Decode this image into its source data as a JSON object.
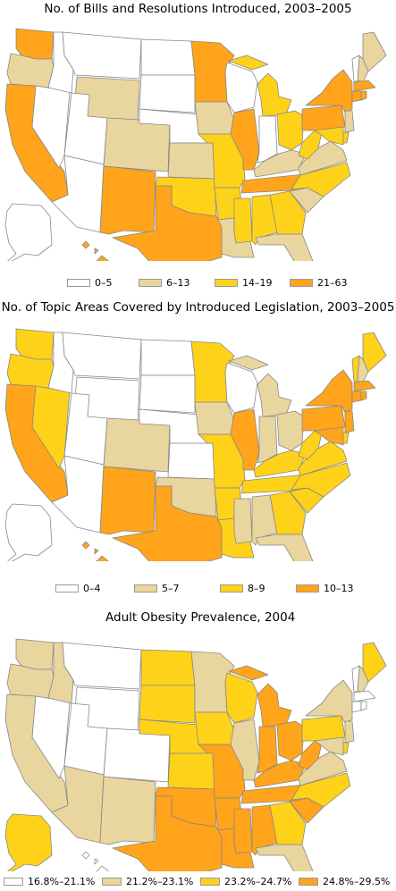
{
  "colors": {
    "c0": "#ffffff",
    "c1": "#e9d59e",
    "c2": "#ffd21a",
    "c3": "#ffa41b"
  },
  "maps": [
    {
      "title": "No. of Bills and Resolutions Introduced, 2003–2005",
      "legend": [
        "0–5",
        "6–13",
        "14–19",
        "21–63"
      ],
      "states": {
        "WA": 3,
        "OR": 1,
        "CA": 3,
        "NV": 0,
        "ID": 0,
        "MT": 0,
        "WY": 1,
        "UT": 0,
        "AZ": 0,
        "CO": 1,
        "NM": 3,
        "ND": 0,
        "SD": 0,
        "NE": 0,
        "KS": 1,
        "OK": 2,
        "TX": 3,
        "MN": 3,
        "IA": 1,
        "MO": 2,
        "AR": 2,
        "LA": 1,
        "WI": 0,
        "IL": 3,
        "MI": 2,
        "IN": 0,
        "OH": 2,
        "KY": 1,
        "TN": 3,
        "MS": 2,
        "AL": 2,
        "GA": 2,
        "FL": 1,
        "SC": 1,
        "NC": 2,
        "VA": 1,
        "WV": 2,
        "PA": 3,
        "NY": 3,
        "ME": 1,
        "NH": 1,
        "VT": 0,
        "MA": 3,
        "CT": 3,
        "RI": 3,
        "NJ": 1,
        "DE": 2,
        "MD": 2,
        "AK": 0,
        "HI": 3
      }
    },
    {
      "title": "No. of Topic Areas Covered by Introduced Legislation, 2003–2005",
      "legend": [
        "0–4",
        "5–7",
        "8–9",
        "10–13"
      ],
      "states": {
        "WA": 2,
        "OR": 2,
        "CA": 3,
        "NV": 2,
        "ID": 0,
        "MT": 0,
        "WY": 0,
        "UT": 0,
        "AZ": 0,
        "CO": 1,
        "NM": 3,
        "ND": 0,
        "SD": 0,
        "NE": 0,
        "KS": 0,
        "OK": 1,
        "TX": 3,
        "MN": 2,
        "IA": 1,
        "MO": 2,
        "AR": 2,
        "LA": 2,
        "WI": 0,
        "IL": 3,
        "MI": 1,
        "IN": 1,
        "OH": 1,
        "KY": 2,
        "TN": 2,
        "MS": 1,
        "AL": 1,
        "GA": 2,
        "FL": 1,
        "SC": 2,
        "NC": 2,
        "VA": 2,
        "WV": 2,
        "PA": 3,
        "NY": 3,
        "ME": 2,
        "NH": 1,
        "VT": 2,
        "MA": 3,
        "CT": 3,
        "RI": 3,
        "NJ": 3,
        "DE": 2,
        "MD": 3,
        "AK": 0,
        "HI": 3
      }
    },
    {
      "title": "Adult Obesity Prevalence, 2004",
      "legend": [
        "16.8%–21.1%",
        "21.2%–23.1%",
        "23.2%–24.7%",
        "24.8%–29.5%"
      ],
      "states": {
        "WA": 1,
        "OR": 1,
        "CA": 1,
        "NV": 0,
        "ID": 1,
        "MT": 0,
        "WY": 0,
        "UT": 0,
        "AZ": 1,
        "CO": 0,
        "NM": 1,
        "ND": 2,
        "SD": 2,
        "NE": 2,
        "KS": 2,
        "OK": 3,
        "TX": 3,
        "MN": 1,
        "IA": 2,
        "MO": 3,
        "AR": 3,
        "LA": 3,
        "WI": 2,
        "IL": 1,
        "MI": 3,
        "IN": 3,
        "OH": 3,
        "KY": 3,
        "TN": 3,
        "MS": 3,
        "AL": 3,
        "GA": 2,
        "FL": 1,
        "SC": 3,
        "NC": 2,
        "VA": 1,
        "WV": 3,
        "PA": 2,
        "NY": 1,
        "ME": 2,
        "NH": 1,
        "VT": 0,
        "MA": 0,
        "CT": 0,
        "RI": 0,
        "NJ": 1,
        "DE": 2,
        "MD": 1,
        "AK": 2,
        "HI": 0
      }
    }
  ]
}
